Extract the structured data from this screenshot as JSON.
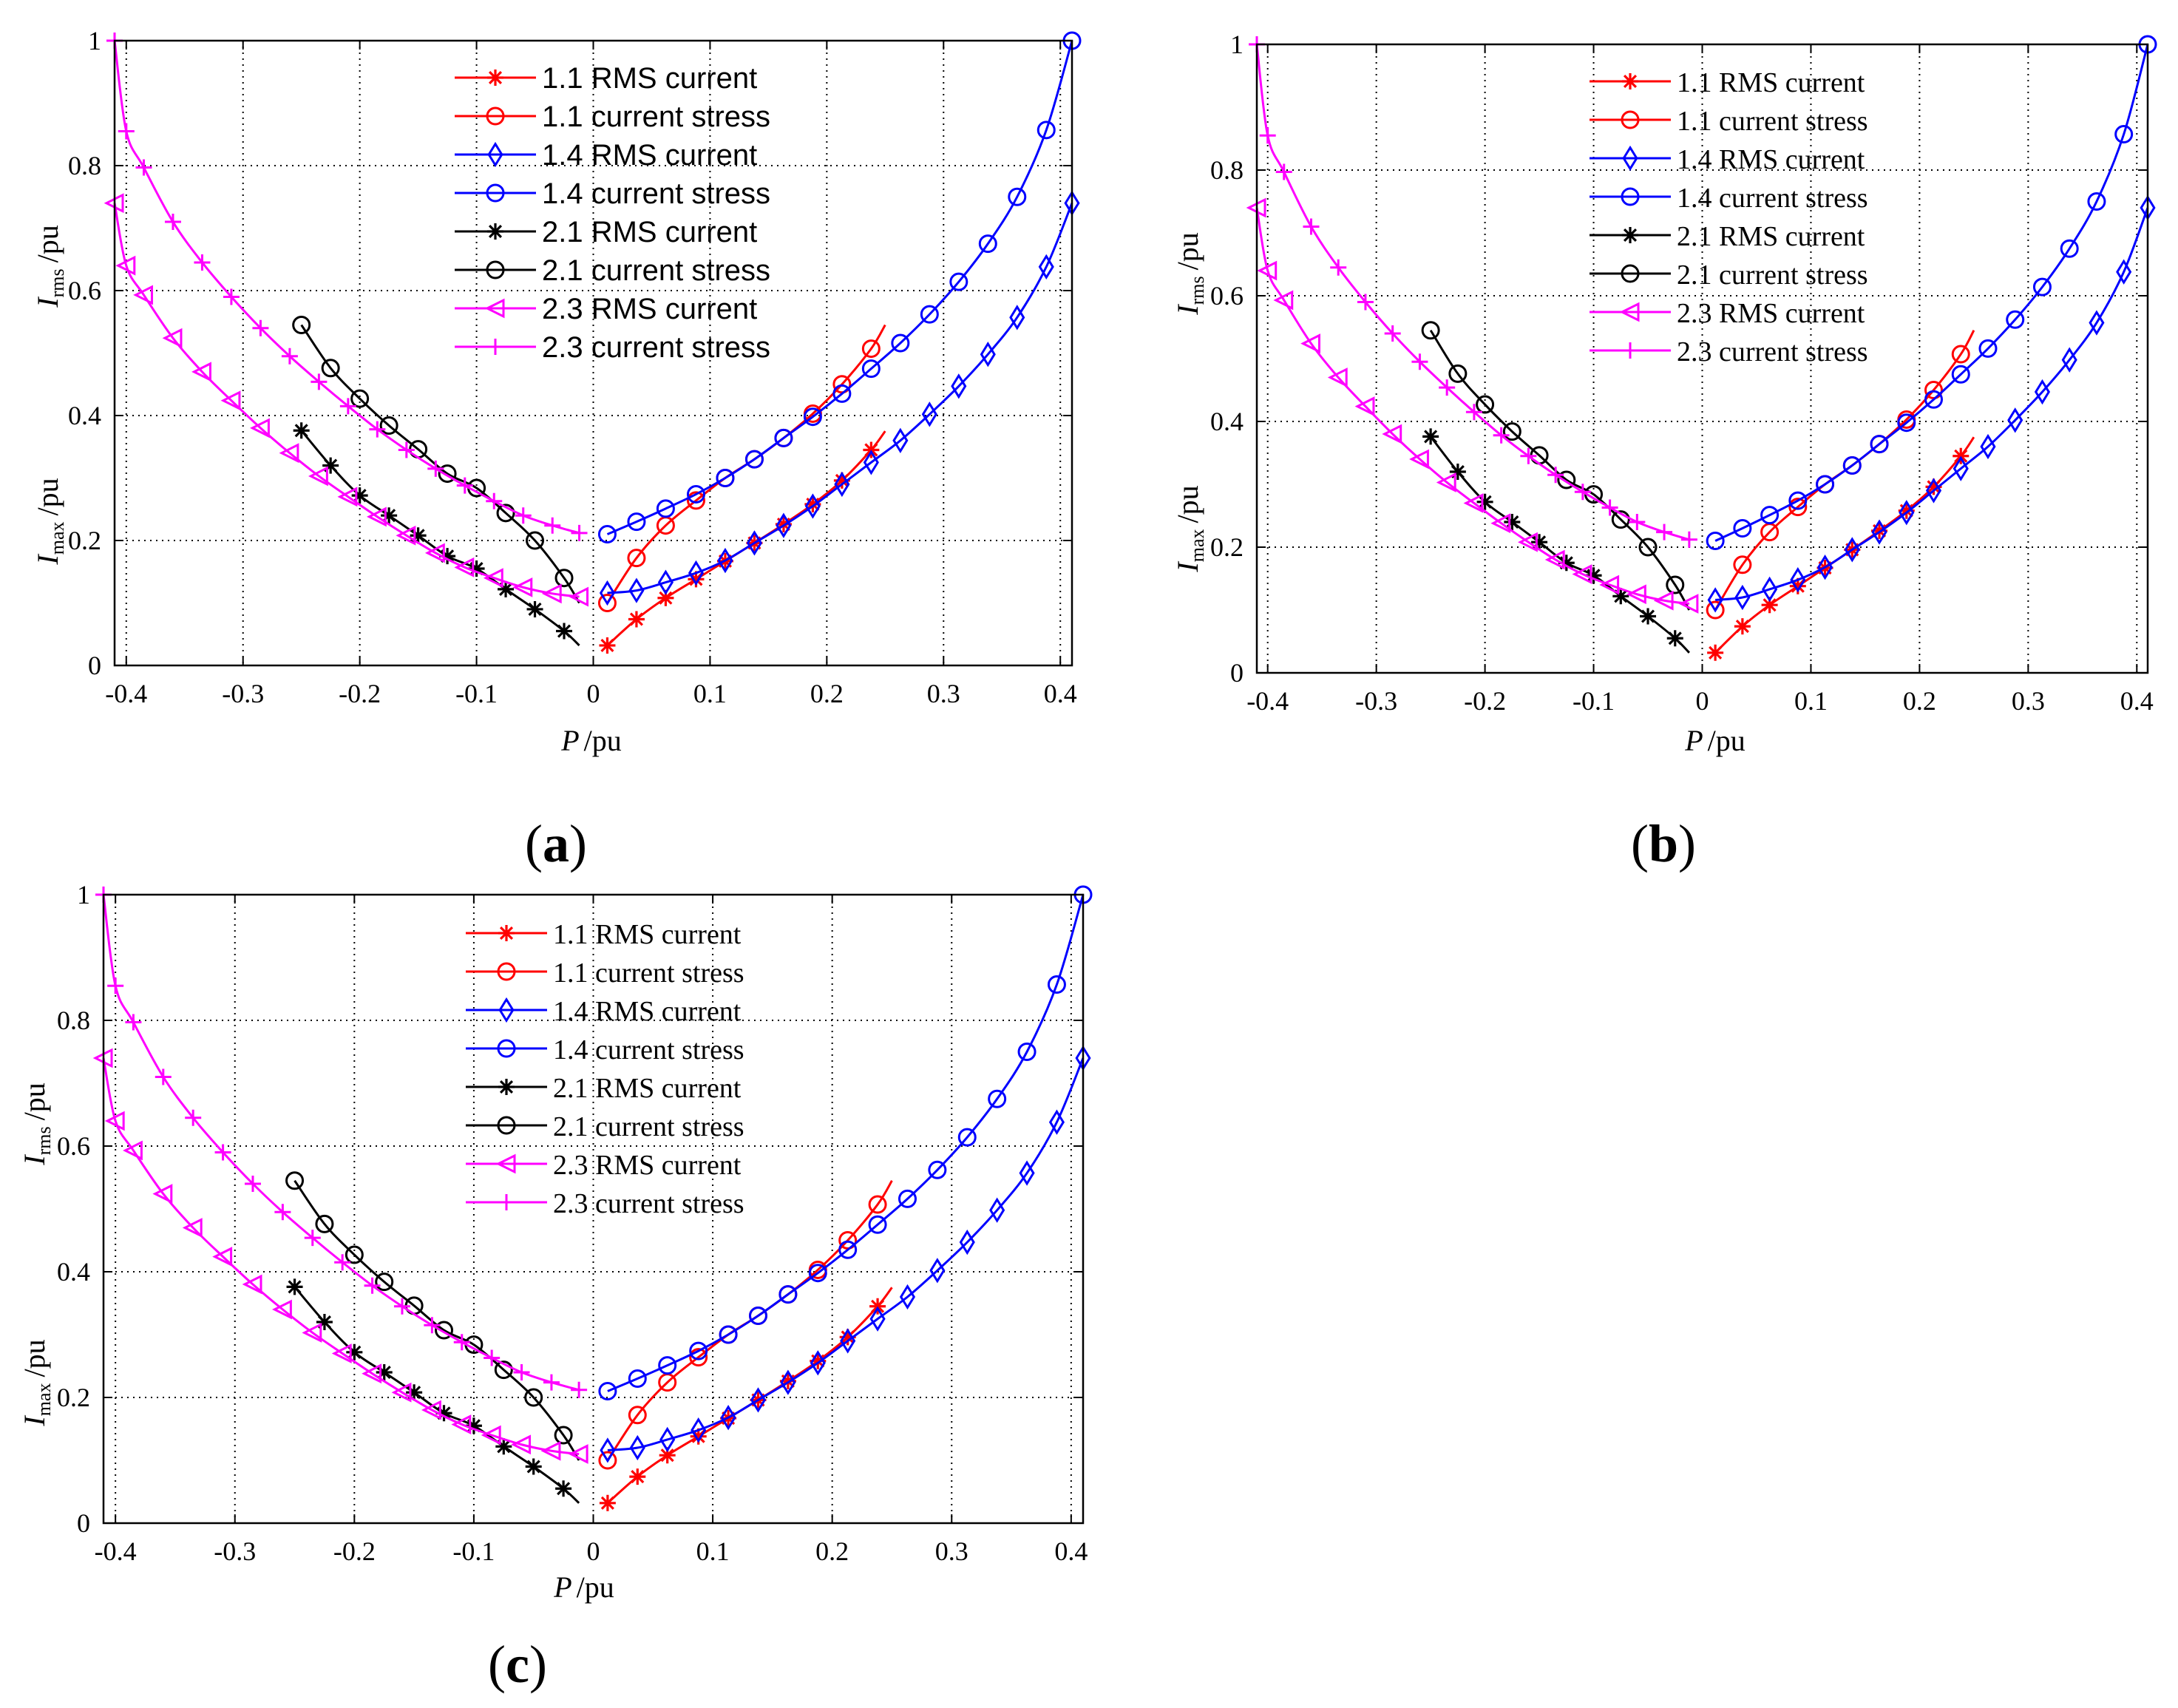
{
  "figure": {
    "panel_labels": [
      "a",
      "b",
      "c"
    ]
  },
  "axis_text": {
    "x_title_var": "P",
    "x_title_unit": "/pu",
    "y_rms_var": "I",
    "y_rms_sub": "rms",
    "y_max_var": "I",
    "y_max_sub": "max",
    "y_unit": "/pu"
  },
  "chart_data": [
    {
      "type": "line",
      "panel": "a",
      "xlim": [
        -0.41,
        0.41
      ],
      "ylim": [
        0,
        1
      ],
      "xticks": [
        -0.4,
        -0.3,
        -0.2,
        -0.1,
        0,
        0.1,
        0.2,
        0.3,
        0.4
      ],
      "xtick_labels": [
        "-0.4",
        "-0.3",
        "-0.2",
        "-0.1",
        "0",
        "0.1",
        "0.2",
        "0.3",
        "0.4"
      ],
      "yticks": [
        0,
        0.2,
        0.4,
        0.6,
        0.8,
        1
      ],
      "ytick_labels": [
        "0",
        "0.2",
        "0.4",
        "0.6",
        "0.8",
        "1"
      ],
      "grid": true,
      "legend_position": "top-center",
      "series": [
        {
          "name": "1.1 RMS current",
          "color": "#ff0000",
          "marker": "asterisk",
          "x": [
            0.012,
            0.037,
            0.062,
            0.088,
            0.113,
            0.138,
            0.163,
            0.188,
            0.213,
            0.238,
            0.25
          ],
          "y": [
            0.032,
            0.074,
            0.108,
            0.138,
            0.167,
            0.196,
            0.226,
            0.258,
            0.296,
            0.345,
            0.375
          ]
        },
        {
          "name": "1.1 current stress",
          "color": "#ff0000",
          "marker": "circle",
          "x": [
            0.012,
            0.037,
            0.062,
            0.088,
            0.113,
            0.138,
            0.163,
            0.188,
            0.213,
            0.238,
            0.25
          ],
          "y": [
            0.1,
            0.172,
            0.224,
            0.264,
            0.3,
            0.33,
            0.364,
            0.403,
            0.45,
            0.507,
            0.545
          ]
        },
        {
          "name": "1.4 RMS current",
          "color": "#0000ff",
          "marker": "diamond",
          "x": [
            0.012,
            0.037,
            0.062,
            0.088,
            0.113,
            0.138,
            0.163,
            0.188,
            0.213,
            0.238,
            0.263,
            0.288,
            0.313,
            0.338,
            0.363,
            0.388,
            0.41
          ],
          "y": [
            0.116,
            0.12,
            0.133,
            0.148,
            0.168,
            0.196,
            0.224,
            0.255,
            0.29,
            0.325,
            0.36,
            0.402,
            0.447,
            0.498,
            0.557,
            0.638,
            0.74
          ]
        },
        {
          "name": "1.4 current stress",
          "color": "#0000ff",
          "marker": "circle",
          "x": [
            0.012,
            0.037,
            0.062,
            0.088,
            0.113,
            0.138,
            0.163,
            0.188,
            0.213,
            0.238,
            0.263,
            0.288,
            0.313,
            0.338,
            0.363,
            0.388,
            0.41
          ],
          "y": [
            0.21,
            0.23,
            0.251,
            0.274,
            0.3,
            0.33,
            0.364,
            0.398,
            0.435,
            0.475,
            0.516,
            0.562,
            0.614,
            0.675,
            0.75,
            0.857,
            1.0
          ]
        },
        {
          "name": "2.1 RMS current",
          "color": "#000000",
          "marker": "asterisk",
          "x": [
            -0.25,
            -0.225,
            -0.2,
            -0.175,
            -0.15,
            -0.125,
            -0.1,
            -0.075,
            -0.05,
            -0.025,
            -0.012
          ],
          "y": [
            0.376,
            0.32,
            0.272,
            0.24,
            0.208,
            0.175,
            0.155,
            0.122,
            0.09,
            0.055,
            0.032
          ]
        },
        {
          "name": "2.1 current stress",
          "color": "#000000",
          "marker": "circle",
          "x": [
            -0.25,
            -0.225,
            -0.2,
            -0.175,
            -0.15,
            -0.125,
            -0.1,
            -0.075,
            -0.05,
            -0.025,
            -0.012
          ],
          "y": [
            0.545,
            0.476,
            0.427,
            0.384,
            0.346,
            0.307,
            0.284,
            0.244,
            0.2,
            0.14,
            0.1
          ]
        },
        {
          "name": "2.3 RMS current",
          "color": "#ff00ff",
          "marker": "triangle-left",
          "x": [
            -0.41,
            -0.4,
            -0.385,
            -0.36,
            -0.335,
            -0.31,
            -0.285,
            -0.26,
            -0.235,
            -0.21,
            -0.185,
            -0.16,
            -0.135,
            -0.11,
            -0.085,
            -0.06,
            -0.035,
            -0.012
          ],
          "y": [
            0.74,
            0.64,
            0.593,
            0.524,
            0.47,
            0.424,
            0.38,
            0.34,
            0.303,
            0.27,
            0.238,
            0.208,
            0.18,
            0.157,
            0.14,
            0.125,
            0.115,
            0.11
          ]
        },
        {
          "name": "2.3 current stress",
          "color": "#ff00ff",
          "marker": "plus",
          "x": [
            -0.41,
            -0.4,
            -0.385,
            -0.36,
            -0.335,
            -0.31,
            -0.285,
            -0.26,
            -0.235,
            -0.21,
            -0.185,
            -0.16,
            -0.135,
            -0.11,
            -0.085,
            -0.06,
            -0.035,
            -0.012
          ],
          "y": [
            1.0,
            0.855,
            0.797,
            0.71,
            0.645,
            0.59,
            0.54,
            0.495,
            0.454,
            0.415,
            0.378,
            0.345,
            0.315,
            0.288,
            0.263,
            0.24,
            0.224,
            0.212
          ]
        }
      ]
    },
    {
      "type": "line",
      "panel": "b",
      "xlim": [
        -0.41,
        0.41
      ],
      "ylim": [
        0,
        1
      ],
      "xticks": [
        -0.4,
        -0.3,
        -0.2,
        -0.1,
        0,
        0.1,
        0.2,
        0.3,
        0.4
      ],
      "xtick_labels": [
        "-0.4",
        "-0.3",
        "-0.2",
        "-0.1",
        "0",
        "0.1",
        "0.2",
        "0.3",
        "0.4"
      ],
      "yticks": [
        0,
        0.2,
        0.4,
        0.6,
        0.8,
        1
      ],
      "ytick_labels": [
        "0",
        "0.2",
        "0.4",
        "0.6",
        "0.8",
        "1"
      ],
      "grid": true,
      "legend_position": "top-center",
      "series": [
        {
          "name": "1.1 RMS current",
          "color": "#ff0000",
          "marker": "asterisk",
          "x": [
            0.012,
            0.037,
            0.062,
            0.088,
            0.113,
            0.138,
            0.163,
            0.188,
            0.213,
            0.238,
            0.25
          ],
          "y": [
            0.032,
            0.074,
            0.108,
            0.138,
            0.167,
            0.196,
            0.226,
            0.258,
            0.296,
            0.345,
            0.375
          ]
        },
        {
          "name": "1.1 current stress",
          "color": "#ff0000",
          "marker": "circle",
          "x": [
            0.012,
            0.037,
            0.062,
            0.088,
            0.113,
            0.138,
            0.163,
            0.188,
            0.213,
            0.238,
            0.25
          ],
          "y": [
            0.1,
            0.172,
            0.224,
            0.264,
            0.3,
            0.33,
            0.364,
            0.403,
            0.45,
            0.507,
            0.545
          ]
        },
        {
          "name": "1.4 RMS current",
          "color": "#0000ff",
          "marker": "diamond",
          "x": [
            0.012,
            0.037,
            0.062,
            0.088,
            0.113,
            0.138,
            0.163,
            0.188,
            0.213,
            0.238,
            0.263,
            0.288,
            0.313,
            0.338,
            0.363,
            0.388,
            0.41
          ],
          "y": [
            0.116,
            0.12,
            0.133,
            0.148,
            0.168,
            0.196,
            0.224,
            0.255,
            0.29,
            0.325,
            0.36,
            0.402,
            0.447,
            0.498,
            0.557,
            0.638,
            0.74
          ]
        },
        {
          "name": "1.4 current stress",
          "color": "#0000ff",
          "marker": "circle",
          "x": [
            0.012,
            0.037,
            0.062,
            0.088,
            0.113,
            0.138,
            0.163,
            0.188,
            0.213,
            0.238,
            0.263,
            0.288,
            0.313,
            0.338,
            0.363,
            0.388,
            0.41
          ],
          "y": [
            0.21,
            0.23,
            0.251,
            0.274,
            0.3,
            0.33,
            0.364,
            0.398,
            0.435,
            0.475,
            0.516,
            0.562,
            0.614,
            0.675,
            0.75,
            0.857,
            1.0
          ]
        },
        {
          "name": "2.1 RMS current",
          "color": "#000000",
          "marker": "asterisk",
          "x": [
            -0.25,
            -0.225,
            -0.2,
            -0.175,
            -0.15,
            -0.125,
            -0.1,
            -0.075,
            -0.05,
            -0.025,
            -0.012
          ],
          "y": [
            0.376,
            0.32,
            0.272,
            0.24,
            0.208,
            0.175,
            0.155,
            0.122,
            0.09,
            0.055,
            0.032
          ]
        },
        {
          "name": "2.1 current stress",
          "color": "#000000",
          "marker": "circle",
          "x": [
            -0.25,
            -0.225,
            -0.2,
            -0.175,
            -0.15,
            -0.125,
            -0.1,
            -0.075,
            -0.05,
            -0.025,
            -0.012
          ],
          "y": [
            0.545,
            0.476,
            0.427,
            0.384,
            0.346,
            0.307,
            0.284,
            0.244,
            0.2,
            0.14,
            0.1
          ]
        },
        {
          "name": "2.3 RMS current",
          "color": "#ff00ff",
          "marker": "triangle-left",
          "x": [
            -0.41,
            -0.4,
            -0.385,
            -0.36,
            -0.335,
            -0.31,
            -0.285,
            -0.26,
            -0.235,
            -0.21,
            -0.185,
            -0.16,
            -0.135,
            -0.11,
            -0.085,
            -0.06,
            -0.035,
            -0.012
          ],
          "y": [
            0.74,
            0.64,
            0.593,
            0.524,
            0.47,
            0.424,
            0.38,
            0.34,
            0.303,
            0.27,
            0.238,
            0.208,
            0.18,
            0.157,
            0.14,
            0.125,
            0.115,
            0.11
          ]
        },
        {
          "name": "2.3 current stress",
          "color": "#ff00ff",
          "marker": "plus",
          "x": [
            -0.41,
            -0.4,
            -0.385,
            -0.36,
            -0.335,
            -0.31,
            -0.285,
            -0.26,
            -0.235,
            -0.21,
            -0.185,
            -0.16,
            -0.135,
            -0.11,
            -0.085,
            -0.06,
            -0.035,
            -0.012
          ],
          "y": [
            1.0,
            0.855,
            0.797,
            0.71,
            0.645,
            0.59,
            0.54,
            0.495,
            0.454,
            0.415,
            0.378,
            0.345,
            0.315,
            0.288,
            0.263,
            0.24,
            0.224,
            0.212
          ]
        }
      ]
    },
    {
      "type": "line",
      "panel": "c",
      "xlim": [
        -0.41,
        0.41
      ],
      "ylim": [
        0,
        1
      ],
      "xticks": [
        -0.4,
        -0.3,
        -0.2,
        -0.1,
        0,
        0.1,
        0.2,
        0.3,
        0.4
      ],
      "xtick_labels": [
        "-0.4",
        "-0.3",
        "-0.2",
        "-0.1",
        "0",
        "0.1",
        "0.2",
        "0.3",
        "0.4"
      ],
      "yticks": [
        0,
        0.2,
        0.4,
        0.6,
        0.8,
        1
      ],
      "ytick_labels": [
        "0",
        "0.2",
        "0.4",
        "0.6",
        "0.8",
        "1"
      ],
      "grid": true,
      "legend_position": "top-center",
      "series": [
        {
          "name": "1.1 RMS current",
          "color": "#ff0000",
          "marker": "asterisk",
          "x": [
            0.012,
            0.037,
            0.062,
            0.088,
            0.113,
            0.138,
            0.163,
            0.188,
            0.213,
            0.238,
            0.25
          ],
          "y": [
            0.032,
            0.074,
            0.108,
            0.138,
            0.167,
            0.196,
            0.226,
            0.258,
            0.296,
            0.345,
            0.375
          ]
        },
        {
          "name": "1.1 current stress",
          "color": "#ff0000",
          "marker": "circle",
          "x": [
            0.012,
            0.037,
            0.062,
            0.088,
            0.113,
            0.138,
            0.163,
            0.188,
            0.213,
            0.238,
            0.25
          ],
          "y": [
            0.1,
            0.172,
            0.224,
            0.264,
            0.3,
            0.33,
            0.364,
            0.403,
            0.45,
            0.507,
            0.545
          ]
        },
        {
          "name": "1.4 RMS current",
          "color": "#0000ff",
          "marker": "diamond",
          "x": [
            0.012,
            0.037,
            0.062,
            0.088,
            0.113,
            0.138,
            0.163,
            0.188,
            0.213,
            0.238,
            0.263,
            0.288,
            0.313,
            0.338,
            0.363,
            0.388,
            0.41
          ],
          "y": [
            0.116,
            0.12,
            0.133,
            0.148,
            0.168,
            0.196,
            0.224,
            0.255,
            0.29,
            0.325,
            0.36,
            0.402,
            0.447,
            0.498,
            0.557,
            0.638,
            0.74
          ]
        },
        {
          "name": "1.4 current stress",
          "color": "#0000ff",
          "marker": "circle",
          "x": [
            0.012,
            0.037,
            0.062,
            0.088,
            0.113,
            0.138,
            0.163,
            0.188,
            0.213,
            0.238,
            0.263,
            0.288,
            0.313,
            0.338,
            0.363,
            0.388,
            0.41
          ],
          "y": [
            0.21,
            0.23,
            0.251,
            0.274,
            0.3,
            0.33,
            0.364,
            0.398,
            0.435,
            0.475,
            0.516,
            0.562,
            0.614,
            0.675,
            0.75,
            0.857,
            1.0
          ]
        },
        {
          "name": "2.1 RMS current",
          "color": "#000000",
          "marker": "asterisk",
          "x": [
            -0.25,
            -0.225,
            -0.2,
            -0.175,
            -0.15,
            -0.125,
            -0.1,
            -0.075,
            -0.05,
            -0.025,
            -0.012
          ],
          "y": [
            0.376,
            0.32,
            0.272,
            0.24,
            0.208,
            0.175,
            0.155,
            0.122,
            0.09,
            0.055,
            0.032
          ]
        },
        {
          "name": "2.1 current stress",
          "color": "#000000",
          "marker": "circle",
          "x": [
            -0.25,
            -0.225,
            -0.2,
            -0.175,
            -0.15,
            -0.125,
            -0.1,
            -0.075,
            -0.05,
            -0.025,
            -0.012
          ],
          "y": [
            0.545,
            0.476,
            0.427,
            0.384,
            0.346,
            0.307,
            0.284,
            0.244,
            0.2,
            0.14,
            0.1
          ]
        },
        {
          "name": "2.3 RMS current",
          "color": "#ff00ff",
          "marker": "triangle-left",
          "x": [
            -0.41,
            -0.4,
            -0.385,
            -0.36,
            -0.335,
            -0.31,
            -0.285,
            -0.26,
            -0.235,
            -0.21,
            -0.185,
            -0.16,
            -0.135,
            -0.11,
            -0.085,
            -0.06,
            -0.035,
            -0.012
          ],
          "y": [
            0.74,
            0.64,
            0.593,
            0.524,
            0.47,
            0.424,
            0.38,
            0.34,
            0.303,
            0.27,
            0.238,
            0.208,
            0.18,
            0.157,
            0.14,
            0.125,
            0.115,
            0.11
          ]
        },
        {
          "name": "2.3 current stress",
          "color": "#ff00ff",
          "marker": "plus",
          "x": [
            -0.41,
            -0.4,
            -0.385,
            -0.36,
            -0.335,
            -0.31,
            -0.285,
            -0.26,
            -0.235,
            -0.21,
            -0.185,
            -0.16,
            -0.135,
            -0.11,
            -0.085,
            -0.06,
            -0.035,
            -0.012
          ],
          "y": [
            1.0,
            0.855,
            0.797,
            0.71,
            0.645,
            0.59,
            0.54,
            0.495,
            0.454,
            0.415,
            0.378,
            0.345,
            0.315,
            0.288,
            0.263,
            0.24,
            0.224,
            0.212
          ]
        }
      ]
    }
  ]
}
